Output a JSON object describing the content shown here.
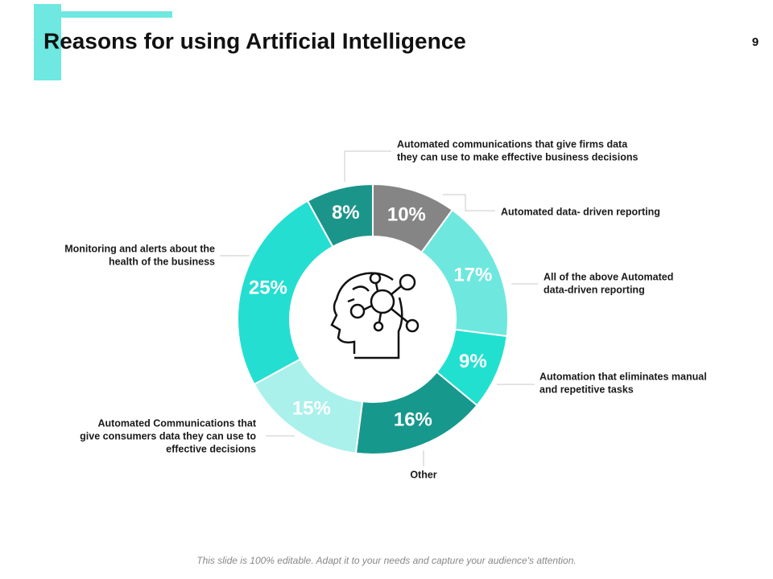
{
  "page": {
    "title": "Reasons for using Artificial Intelligence",
    "page_number": "9",
    "footer": "This slide is 100% editable. Adapt it to your needs and capture your audience's attention."
  },
  "chart_data": {
    "type": "donut",
    "categories": [
      [
        "Automated data- driven reporting"
      ],
      [
        "All of the above Automated",
        "data-driven reporting"
      ],
      [
        "Automation that eliminates manual",
        "and repetitive tasks"
      ],
      [
        "Other"
      ],
      [
        "Automated Communications that",
        "give consumers  data they can use to",
        "effective decisions"
      ],
      [
        "Monitoring and alerts about the",
        "health of the business"
      ],
      [
        "Automated communications that give firms data",
        "they can use to make effective business  decisions"
      ]
    ],
    "values": [
      10,
      17,
      9,
      16,
      15,
      25,
      8
    ],
    "value_labels": [
      "10%",
      "17%",
      "9%",
      "16%",
      "15%",
      "25%",
      "8%"
    ],
    "colors": [
      "#858585",
      "#6ee8de",
      "#22e0cf",
      "#17988c",
      "#aaf1eb",
      "#24ded1",
      "#1b958a"
    ]
  }
}
